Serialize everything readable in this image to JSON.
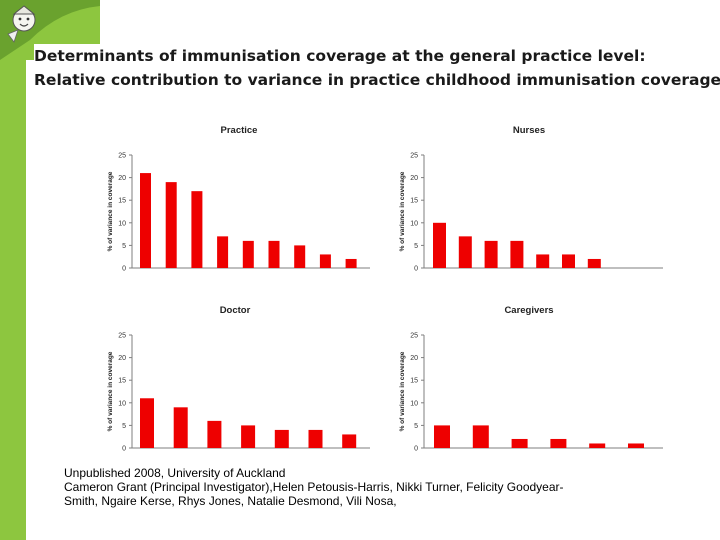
{
  "slide": {
    "title_line1": "Determinants of immunisation coverage at the general practice level:",
    "title_line2": "Relative contribution to variance in practice childhood immunisation coverage",
    "citation_line1": "Unpublished 2008, University of Auckland",
    "citation_line2": "Cameron Grant (Principal Investigator),Helen Petousis-Harris, Nikki Turner, Felicity Goodyear-",
    "citation_line3": "Smith, Ngaire Kerse, Rhys Jones,  Natalie Desmond, Vili Nosa,"
  },
  "colors": {
    "bar": "#ee0000",
    "accent": "#8dc63f",
    "axis": "#7f7f7f"
  },
  "chart_data": [
    {
      "type": "bar",
      "title": "Practice",
      "ylabel": "% of variance in coverage",
      "ylim": [
        0,
        25
      ],
      "yticks": [
        0,
        5,
        10,
        15,
        20,
        25
      ],
      "values": [
        21,
        19,
        17,
        7,
        6,
        6,
        5,
        3,
        2
      ]
    },
    {
      "type": "bar",
      "title": "Nurses",
      "ylabel": "% of variance in coverage",
      "ylim": [
        0,
        25
      ],
      "yticks": [
        0,
        5,
        10,
        15,
        20,
        25
      ],
      "values": [
        10,
        7,
        6,
        6,
        3,
        3,
        2
      ]
    },
    {
      "type": "bar",
      "title": "Doctor",
      "ylabel": "% of variance in coverage",
      "ylim": [
        0,
        25
      ],
      "yticks": [
        0,
        5,
        10,
        15,
        20,
        25
      ],
      "values": [
        11,
        9,
        6,
        5,
        4,
        4,
        3
      ]
    },
    {
      "type": "bar",
      "title": "Caregivers",
      "ylabel": "% of variance in coverage",
      "ylim": [
        0,
        25
      ],
      "yticks": [
        0,
        5,
        10,
        15,
        20,
        25
      ],
      "values": [
        5,
        5,
        2,
        2,
        1,
        1
      ]
    }
  ]
}
